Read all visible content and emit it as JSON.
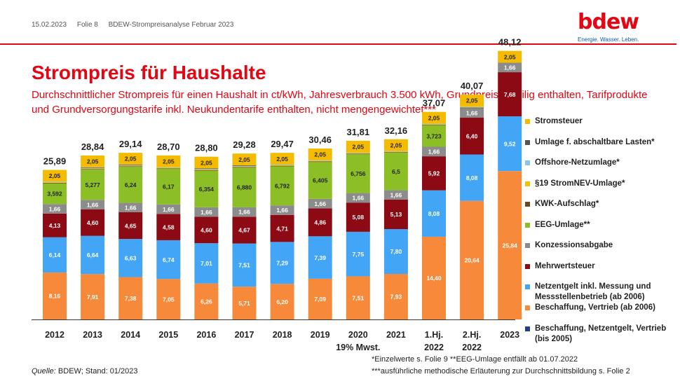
{
  "header": {
    "date": "15.02.2023",
    "slide": "Folie 8",
    "doc": "BDEW-Strompreisanalyse  Februar 2023"
  },
  "logo": {
    "text": "bdew",
    "tagline": "Energie. Wasser. Leben."
  },
  "footer": {
    "source_label": "Quelle:",
    "source_text": " BDEW; Stand: 01/2023",
    "note1": "*Einzelwerte s. Folie 9  **EEG-Umlage entfällt ab 01.07.2022",
    "note2": "***ausführliche methodische Erläuterung zur Durchschnittsbildung s. Folie 2"
  },
  "colors": {
    "beschaffung": "#f7893b",
    "netzentgelt": "#42a5f5",
    "mwst": "#8b0a14",
    "konzession": "#8c8c8c",
    "eeg": "#8cbf26",
    "kwk": "#6b4a1e",
    "stromnev": "#f2c200",
    "offshore": "#86c6ee",
    "abschaltbar": "#555555",
    "stromsteuer": "#f5bb00",
    "alt": "#1f3e8c"
  },
  "chart_data": {
    "type": "bar",
    "stacked": true,
    "title": "Strompreis für Haushalte",
    "subtitle": "Durchschnittlicher Strompreis für einen Haushalt in ct/kWh, Jahresverbrauch 3.500 kWh, Grundpreis anteilig enthalten, Tarifprodukte und Grundversorgungstarife inkl. Neukundentarife enthalten, nicht mengengewichtet***",
    "categories": [
      {
        "l1": "2012",
        "l2": ""
      },
      {
        "l1": "2013",
        "l2": ""
      },
      {
        "l1": "2014",
        "l2": ""
      },
      {
        "l1": "2015",
        "l2": ""
      },
      {
        "l1": "2016",
        "l2": ""
      },
      {
        "l1": "2017",
        "l2": ""
      },
      {
        "l1": "2018",
        "l2": ""
      },
      {
        "l1": "2019",
        "l2": ""
      },
      {
        "l1": "2020",
        "l2": "19% Mwst."
      },
      {
        "l1": "2021",
        "l2": ""
      },
      {
        "l1": "1.Hj.",
        "l2": "2022"
      },
      {
        "l1": "2.Hj.",
        "l2": "2022"
      },
      {
        "l1": "2023",
        "l2": ""
      }
    ],
    "totals": [
      "25,89",
      "28,84",
      "29,14",
      "28,70",
      "28,80",
      "29,28",
      "29,47",
      "30,46",
      "31,81",
      "32,16",
      "37,07",
      "40,07",
      "48,12"
    ],
    "ylim": [
      0,
      50
    ],
    "series": [
      {
        "key": "beschaffung",
        "name": "Beschaffung, Vertrieb (ab 2006)",
        "values": [
          8.16,
          7.91,
          7.38,
          7.05,
          6.26,
          5.71,
          6.2,
          7.09,
          7.51,
          7.93,
          14.4,
          20.64,
          25.84
        ],
        "labels": [
          "8,16",
          "7,91",
          "7,38",
          "7,05",
          "6,26",
          "5,71",
          "6,20",
          "7,09",
          "7,51",
          "7,93",
          "14,40",
          "20,64",
          "25,84"
        ]
      },
      {
        "key": "netzentgelt",
        "name": "Netzentgelt inkl. Messung und Messstellenbetrieb (ab 2006)",
        "values": [
          6.14,
          6.64,
          6.63,
          6.74,
          7.01,
          7.51,
          7.29,
          7.39,
          7.75,
          7.8,
          8.08,
          8.08,
          9.52
        ],
        "labels": [
          "6,14",
          "6,64",
          "6,63",
          "6,74",
          "7,01",
          "7,51",
          "7,29",
          "7,39",
          "7,75",
          "7,80",
          "8,08",
          "8,08",
          "9,52"
        ]
      },
      {
        "key": "mwst",
        "name": "Mehrwertsteuer",
        "values": [
          4.13,
          4.6,
          4.65,
          4.58,
          4.6,
          4.67,
          4.71,
          4.86,
          5.08,
          5.13,
          5.92,
          6.4,
          7.68
        ],
        "labels": [
          "4,13",
          "4,60",
          "4,65",
          "4,58",
          "4,60",
          "4,67",
          "4,71",
          "4,86",
          "5,08",
          "5,13",
          "5,92",
          "6,40",
          "7,68"
        ]
      },
      {
        "key": "konzession",
        "name": "Konzessionsabgabe",
        "values": [
          1.66,
          1.66,
          1.66,
          1.66,
          1.66,
          1.66,
          1.66,
          1.66,
          1.66,
          1.66,
          1.66,
          1.66,
          1.66
        ],
        "labels": [
          "1,66",
          "1,66",
          "1,66",
          "1,66",
          "1,66",
          "1,66",
          "1,66",
          "1,66",
          "1,66",
          "1,66",
          "1,66",
          "1,66",
          "1,66"
        ]
      },
      {
        "key": "eeg",
        "name": "EEG-Umlage**",
        "values": [
          3.592,
          5.277,
          6.24,
          6.17,
          6.354,
          6.88,
          6.792,
          6.405,
          6.756,
          6.5,
          3.723,
          0,
          0
        ],
        "labels": [
          "3,592",
          "5,277",
          "6,24",
          "6,17",
          "6,354",
          "6,880",
          "6,792",
          "6,405",
          "6,756",
          "6,5",
          "3,723",
          "",
          ""
        ]
      },
      {
        "key": "kwk",
        "name": "KWK-Aufschlag*",
        "values": [
          0.1,
          0.1,
          0.1,
          0.1,
          0.1,
          0.1,
          0.1,
          0.1,
          0.1,
          0.1,
          0.1,
          0.1,
          0
        ],
        "labels": [
          "",
          "",
          "",
          "",
          "",
          "",
          "",
          "",
          "",
          "",
          "",
          "",
          ""
        ]
      },
      {
        "key": "stromnev",
        "name": "§19 StromNEV-Umlage*",
        "values": [
          0.1,
          0.1,
          0.1,
          0.1,
          0.1,
          0.1,
          0.1,
          0.1,
          0.1,
          0.1,
          0.1,
          0.1,
          0
        ],
        "labels": [
          "",
          "",
          "",
          "",
          "",
          "",
          "",
          "",
          "",
          "",
          "",
          "",
          ""
        ]
      },
      {
        "key": "offshore",
        "name": "Offshore-Netzumlage*",
        "values": [
          0.1,
          0.1,
          0.1,
          0.1,
          0.1,
          0.1,
          0.1,
          0.1,
          0.1,
          0.1,
          0.1,
          0.1,
          0
        ],
        "labels": [
          "",
          "",
          "",
          "",
          "",
          "",
          "",
          "",
          "",
          "",
          "",
          "",
          ""
        ]
      },
      {
        "key": "abschaltbar",
        "name": "Umlage f. abschaltbare Lasten*",
        "values": [
          0,
          0.1,
          0.1,
          0,
          0.1,
          0.1,
          0,
          0,
          0,
          0,
          0,
          0,
          0
        ],
        "labels": [
          "",
          "",
          "",
          "",
          "",
          "",
          "",
          "",
          "",
          "",
          "",
          "",
          ""
        ]
      },
      {
        "key": "stromsteuer",
        "name": "Stromsteuer",
        "values": [
          2.05,
          2.05,
          2.05,
          2.05,
          2.05,
          2.05,
          2.05,
          2.05,
          2.05,
          2.05,
          2.05,
          2.05,
          2.05
        ],
        "labels": [
          "2,05",
          "2,05",
          "2,05",
          "2,05",
          "2,05",
          "2,05",
          "2,05",
          "2,05",
          "2,05",
          "2,05",
          "2,05",
          "2,05",
          "2,05"
        ]
      }
    ],
    "legend": [
      {
        "key": "stromsteuer",
        "name": "Stromsteuer"
      },
      {
        "key": "abschaltbar",
        "name": "Umlage f. abschaltbare Lasten*"
      },
      {
        "key": "offshore",
        "name": "Offshore-Netzumlage*"
      },
      {
        "key": "stromnev",
        "name": "§19 StromNEV-Umlage*"
      },
      {
        "key": "kwk",
        "name": "KWK-Aufschlag*"
      },
      {
        "key": "eeg",
        "name": "EEG-Umlage**"
      },
      {
        "key": "konzession",
        "name": "Konzessionsabgabe"
      },
      {
        "key": "mwst",
        "name": "Mehrwertsteuer"
      },
      {
        "key": "netzentgelt",
        "name": "Netzentgelt inkl. Messung und Messstellenbetrieb (ab 2006)"
      },
      {
        "key": "beschaffung",
        "name": "Beschaffung, Vertrieb (ab 2006)"
      },
      {
        "key": "alt",
        "name": "Beschaffung, Netzentgelt, Vertrieb (bis 2005)"
      }
    ],
    "legend_position": "right"
  }
}
